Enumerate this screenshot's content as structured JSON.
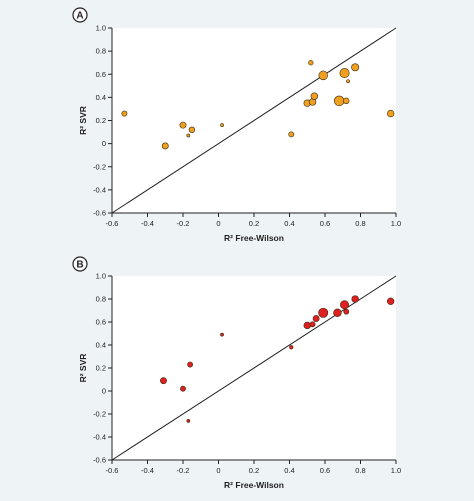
{
  "chart_data": [
    {
      "type": "scatter",
      "panel_label": "A",
      "xlabel": "R² Free-Wilson",
      "ylabel": "R² SVR",
      "xlim": [
        -0.6,
        1.0
      ],
      "ylim": [
        -0.6,
        1.0
      ],
      "x_ticks": [
        -0.6,
        -0.4,
        -0.2,
        0,
        0.2,
        0.4,
        0.6,
        0.8,
        1.0
      ],
      "x_tick_labels": [
        "-0.6",
        "-0.4",
        "-0.2",
        "0",
        "0.2",
        "0.4",
        "0.6",
        "0.8",
        "1.0"
      ],
      "y_ticks": [
        -0.6,
        -0.4,
        -0.2,
        0,
        0.2,
        0.4,
        0.6,
        0.8,
        1.0
      ],
      "y_tick_labels": [
        "-0.6",
        "-0.4",
        "-0.2",
        "0",
        "0.2",
        "0.4",
        "0.6",
        "0.8",
        "1.0"
      ],
      "grid": false,
      "reference_line": "y = x",
      "point_color": "#f0a020",
      "points": [
        {
          "x": -0.53,
          "y": 0.26,
          "size": 1.0
        },
        {
          "x": -0.3,
          "y": -0.02,
          "size": 1.2
        },
        {
          "x": -0.2,
          "y": 0.16,
          "size": 1.2
        },
        {
          "x": -0.17,
          "y": 0.07,
          "size": 0.6
        },
        {
          "x": -0.15,
          "y": 0.12,
          "size": 1.1
        },
        {
          "x": 0.02,
          "y": 0.16,
          "size": 0.6
        },
        {
          "x": 0.41,
          "y": 0.08,
          "size": 1.0
        },
        {
          "x": 0.5,
          "y": 0.35,
          "size": 1.3
        },
        {
          "x": 0.52,
          "y": 0.7,
          "size": 0.9
        },
        {
          "x": 0.53,
          "y": 0.36,
          "size": 1.3
        },
        {
          "x": 0.54,
          "y": 0.41,
          "size": 1.3
        },
        {
          "x": 0.59,
          "y": 0.59,
          "size": 1.7
        },
        {
          "x": 0.68,
          "y": 0.37,
          "size": 1.9
        },
        {
          "x": 0.71,
          "y": 0.61,
          "size": 1.8
        },
        {
          "x": 0.72,
          "y": 0.37,
          "size": 1.1
        },
        {
          "x": 0.73,
          "y": 0.54,
          "size": 0.6
        },
        {
          "x": 0.77,
          "y": 0.66,
          "size": 1.4
        },
        {
          "x": 0.97,
          "y": 0.26,
          "size": 1.3
        }
      ]
    },
    {
      "type": "scatter",
      "panel_label": "B",
      "xlabel": "R² Free-Wilson",
      "ylabel": "R² SVR",
      "xlim": [
        -0.6,
        1.0
      ],
      "ylim": [
        -0.6,
        1.0
      ],
      "x_ticks": [
        -0.6,
        -0.4,
        -0.2,
        0,
        0.2,
        0.4,
        0.6,
        0.8,
        1.0
      ],
      "x_tick_labels": [
        "-0.6",
        "-0.4",
        "-0.2",
        "0",
        "0.2",
        "0.4",
        "0.6",
        "0.8",
        "1.0"
      ],
      "y_ticks": [
        -0.6,
        -0.4,
        -0.2,
        0,
        0.2,
        0.4,
        0.6,
        0.8,
        1.0
      ],
      "y_tick_labels": [
        "-0.6",
        "-0.4",
        "-0.2",
        "0",
        "0.2",
        "0.4",
        "0.6",
        "0.8",
        "1.0"
      ],
      "grid": false,
      "reference_line": "y = x",
      "point_color": "#e02020",
      "points": [
        {
          "x": -0.31,
          "y": 0.09,
          "size": 1.2
        },
        {
          "x": -0.2,
          "y": 0.02,
          "size": 1.0
        },
        {
          "x": -0.17,
          "y": -0.26,
          "size": 0.6
        },
        {
          "x": -0.16,
          "y": 0.23,
          "size": 1.0
        },
        {
          "x": 0.02,
          "y": 0.49,
          "size": 0.6
        },
        {
          "x": 0.41,
          "y": 0.38,
          "size": 0.7
        },
        {
          "x": 0.5,
          "y": 0.57,
          "size": 1.3
        },
        {
          "x": 0.53,
          "y": 0.58,
          "size": 1.0
        },
        {
          "x": 0.55,
          "y": 0.63,
          "size": 1.2
        },
        {
          "x": 0.59,
          "y": 0.68,
          "size": 1.8
        },
        {
          "x": 0.67,
          "y": 0.68,
          "size": 1.5
        },
        {
          "x": 0.71,
          "y": 0.75,
          "size": 1.6
        },
        {
          "x": 0.72,
          "y": 0.69,
          "size": 1.0
        },
        {
          "x": 0.77,
          "y": 0.8,
          "size": 1.3
        },
        {
          "x": 0.97,
          "y": 0.78,
          "size": 1.3
        }
      ]
    }
  ]
}
